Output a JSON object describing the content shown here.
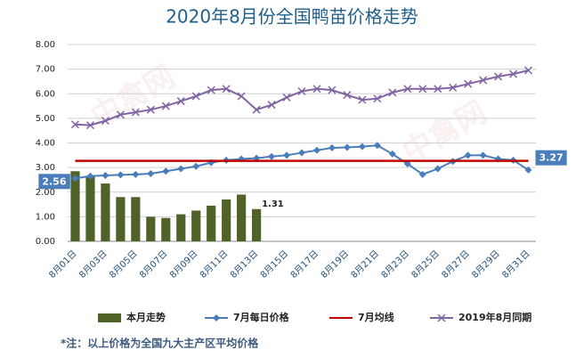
{
  "chart_data": {
    "type": "combo",
    "title": "2020年8月份全国鸭苗价格走势",
    "watermark": "中禽网",
    "footnote": "*注：以上价格为全国九大主产区平均价格",
    "categories": [
      "8月01日",
      null,
      "8月03日",
      null,
      "8月05日",
      null,
      "8月07日",
      null,
      "8月09日",
      null,
      "8月11日",
      null,
      "8月13日",
      null,
      "8月15日",
      null,
      "8月17日",
      null,
      "8月19日",
      null,
      "8月21日",
      null,
      "8月23日",
      null,
      "8月25日",
      null,
      "8月27日",
      null,
      "8月29日",
      null,
      "8月31日"
    ],
    "ylim": [
      0,
      8
    ],
    "yticks": [
      {
        "value": 0,
        "label": "0.00"
      },
      {
        "value": 1,
        "label": "1.00"
      },
      {
        "value": 2,
        "label": "2.00"
      },
      {
        "value": 3,
        "label": "3.00"
      },
      {
        "value": 4,
        "label": "4.00"
      },
      {
        "value": 5,
        "label": "5.00"
      },
      {
        "value": 6,
        "label": "6.00"
      },
      {
        "value": 7,
        "label": "7.00"
      },
      {
        "value": 8,
        "label": "8.00"
      }
    ],
    "grid": true,
    "legend": "bottom",
    "series": [
      {
        "name": "本月走势",
        "type": "bar",
        "color": "#4f6228",
        "values": [
          2.85,
          2.65,
          2.35,
          1.8,
          1.8,
          1.0,
          0.95,
          1.1,
          1.25,
          1.45,
          1.7,
          1.9,
          1.31,
          null,
          null,
          null,
          null,
          null,
          null,
          null,
          null,
          null,
          null,
          null,
          null,
          null,
          null,
          null,
          null,
          null,
          null
        ],
        "value_labels": [
          null,
          null,
          null,
          null,
          null,
          null,
          null,
          null,
          null,
          null,
          null,
          null,
          "1.31",
          null,
          null,
          null,
          null,
          null,
          null,
          null,
          null,
          null,
          null,
          null,
          null,
          null,
          null,
          null,
          null,
          null,
          null
        ]
      },
      {
        "name": "7月每日价格",
        "type": "line",
        "color": "#4a7ebb",
        "marker": "diamond",
        "values": [
          2.56,
          2.65,
          2.68,
          2.7,
          2.72,
          2.75,
          2.85,
          2.95,
          3.05,
          3.2,
          3.3,
          3.35,
          3.38,
          3.45,
          3.5,
          3.6,
          3.7,
          3.8,
          3.82,
          3.85,
          3.9,
          3.55,
          3.15,
          2.72,
          2.95,
          3.25,
          3.5,
          3.5,
          3.35,
          3.3,
          2.9
        ],
        "value_labels": [
          "2.56",
          null,
          null,
          null,
          null,
          null,
          null,
          null,
          null,
          null,
          null,
          null,
          null,
          null,
          null,
          null,
          null,
          null,
          null,
          null,
          null,
          null,
          null,
          null,
          null,
          null,
          null,
          null,
          null,
          null,
          null
        ]
      },
      {
        "name": "7月均线",
        "type": "line",
        "color": "#c00000",
        "values": [
          3.27,
          3.27,
          3.27,
          3.27,
          3.27,
          3.27,
          3.27,
          3.27,
          3.27,
          3.27,
          3.27,
          3.27,
          3.27,
          3.27,
          3.27,
          3.27,
          3.27,
          3.27,
          3.27,
          3.27,
          3.27,
          3.27,
          3.27,
          3.27,
          3.27,
          3.27,
          3.27,
          3.27,
          3.27,
          3.27,
          3.27
        ],
        "value_labels": [
          null,
          null,
          null,
          null,
          null,
          null,
          null,
          null,
          null,
          null,
          null,
          null,
          null,
          null,
          null,
          null,
          null,
          null,
          null,
          null,
          null,
          null,
          null,
          null,
          null,
          null,
          null,
          null,
          null,
          null,
          "3.27"
        ]
      },
      {
        "name": "2019年8月同期",
        "type": "line",
        "color": "#8064a2",
        "marker": "x",
        "values": [
          4.75,
          4.72,
          4.9,
          5.15,
          5.25,
          5.35,
          5.5,
          5.7,
          5.9,
          6.15,
          6.2,
          5.9,
          5.35,
          5.55,
          5.85,
          6.1,
          6.2,
          6.15,
          5.95,
          5.75,
          5.8,
          6.05,
          6.2,
          6.2,
          6.2,
          6.25,
          6.4,
          6.55,
          6.7,
          6.8,
          6.95
        ]
      }
    ]
  }
}
